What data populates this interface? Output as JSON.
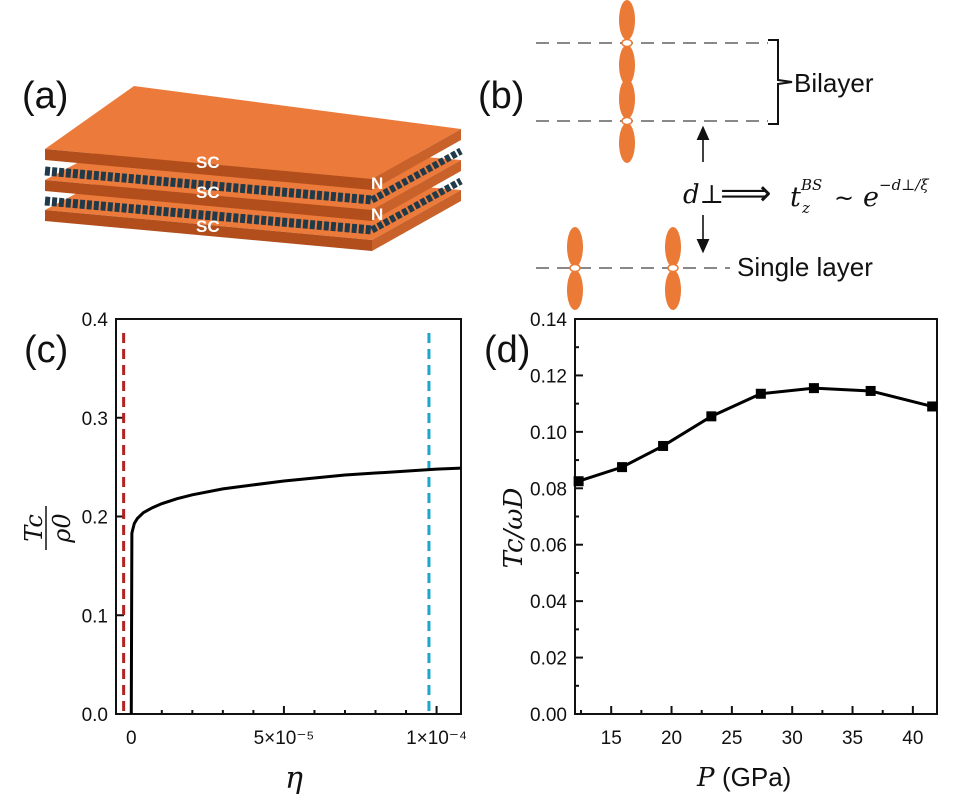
{
  "panels": {
    "a": {
      "label": "(a)",
      "layers": [
        "SC",
        "SC",
        "SC"
      ],
      "interface_label": "N"
    },
    "b": {
      "label": "(b)",
      "bilayer": "Bilayer",
      "single_layer": "Single layer",
      "distance": "d⊥",
      "arrow": "⟹",
      "hop_main": "t",
      "hop_sup": "BS",
      "hop_sub": "z",
      "tilde": "~",
      "exp_base": "e",
      "exp_power": "−d⊥/ξ"
    },
    "c": {
      "label": "(c)"
    },
    "d": {
      "label": "(d)"
    }
  },
  "chart_data": [
    {
      "id": "c",
      "type": "line",
      "xlabel": "η",
      "ylabel_num": "Tc",
      "ylabel_den": "ρ0",
      "xlim": [
        -5e-06,
        0.000108
      ],
      "ylim": [
        0,
        0.4
      ],
      "yticks": [
        0.0,
        0.1,
        0.2,
        0.3,
        0.4
      ],
      "ytick_labels": [
        "0.0",
        "0.1",
        "0.2",
        "0.3",
        "0.4"
      ],
      "xtick_labels": [
        {
          "value": 0,
          "text": "0"
        },
        {
          "value": 5e-05,
          "text": "5×10⁻⁵"
        },
        {
          "value": 0.0001,
          "text": "1×10⁻⁴"
        }
      ],
      "series": [
        {
          "name": "Tc/ρ0",
          "color": "#000000",
          "x": [
            0,
            2e-07,
            5e-07,
            1e-06,
            2e-06,
            4e-06,
            7e-06,
            1e-05,
            1.5e-05,
            2e-05,
            3e-05,
            4e-05,
            5e-05,
            6e-05,
            7e-05,
            8e-05,
            9e-05,
            0.0001,
            0.000108
          ],
          "y": [
            0.0,
            0.183,
            0.187,
            0.193,
            0.198,
            0.204,
            0.209,
            0.213,
            0.218,
            0.222,
            0.228,
            0.232,
            0.236,
            0.239,
            0.242,
            0.244,
            0.246,
            0.248,
            0.249
          ]
        }
      ],
      "vlines": [
        {
          "x": -2.5e-06,
          "color": "#b22222"
        },
        {
          "x": 9.75e-05,
          "color": "#1fa5c9"
        }
      ]
    },
    {
      "id": "d",
      "type": "line",
      "xlabel_var": "P",
      "xlabel_unit": "(GPa)",
      "ylabel": "Tc/ωD",
      "xlim": [
        12,
        42
      ],
      "ylim": [
        0,
        0.14
      ],
      "xticks": [
        15,
        20,
        25,
        30,
        35,
        40
      ],
      "yticks": [
        0.0,
        0.02,
        0.04,
        0.06,
        0.08,
        0.1,
        0.12,
        0.14
      ],
      "ytick_labels": [
        "0.00",
        "0.02",
        "0.04",
        "0.06",
        "0.08",
        "0.10",
        "0.12",
        "0.14"
      ],
      "series": [
        {
          "name": "Tc/ωD",
          "color": "#000000",
          "marker": "square",
          "x": [
            12.3,
            15.9,
            19.3,
            23.3,
            27.4,
            31.8,
            36.5,
            41.6
          ],
          "y": [
            0.0825,
            0.0875,
            0.095,
            0.1055,
            0.1135,
            0.1155,
            0.1145,
            0.109
          ]
        }
      ]
    }
  ]
}
